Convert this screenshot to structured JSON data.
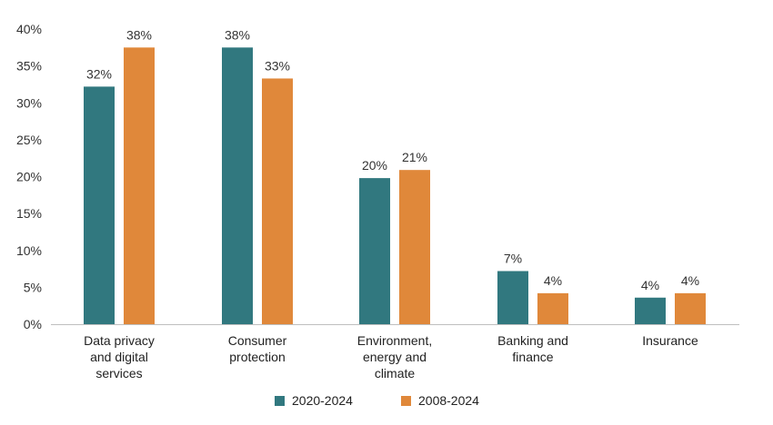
{
  "chart_data": {
    "type": "bar",
    "title": "",
    "xlabel": "",
    "ylabel": "",
    "ylim": [
      0,
      40
    ],
    "yticks": [
      0,
      5,
      10,
      15,
      20,
      25,
      30,
      35,
      40
    ],
    "ytick_labels": [
      "0%",
      "5%",
      "10%",
      "15%",
      "20%",
      "25%",
      "30%",
      "35%",
      "40%"
    ],
    "grid": false,
    "legend_position": "bottom-center",
    "categories": [
      [
        "Data privacy",
        "and digital",
        "services"
      ],
      [
        "Consumer",
        "protection"
      ],
      [
        "Environment,",
        "energy and",
        "climate"
      ],
      [
        "Banking and",
        "finance"
      ],
      [
        "Insurance"
      ]
    ],
    "series": [
      {
        "name": "2020-2024",
        "color": "#31787f",
        "values": [
          32.2,
          37.5,
          19.8,
          7.2,
          3.6
        ],
        "labels": [
          "32%",
          "38%",
          "20%",
          "7%",
          "4%"
        ]
      },
      {
        "name": "2008-2024",
        "color": "#e0883a",
        "values": [
          37.5,
          33.3,
          20.9,
          4.2,
          4.2
        ],
        "labels": [
          "38%",
          "33%",
          "21%",
          "4%",
          "4%"
        ]
      }
    ]
  }
}
